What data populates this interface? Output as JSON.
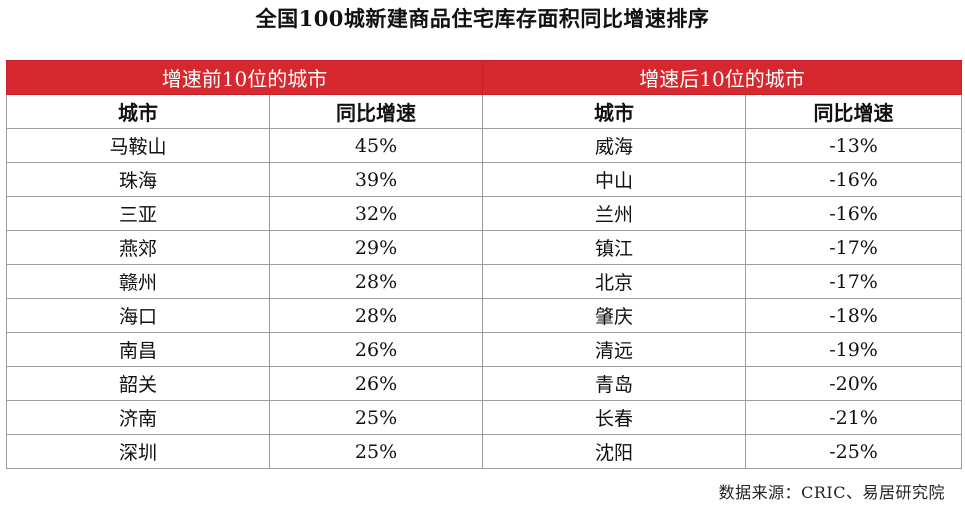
{
  "title": "全国100城新建商品住宅库存面积同比增速排序",
  "source": "数据来源：CRIC、易居研究院",
  "colors": {
    "header_fill": "#d7282f",
    "header_text": "#ffffff",
    "grid_line": "#9c9c9c"
  },
  "chart_data": {
    "type": "table",
    "title": "全国100城新建商品住宅库存面积同比增速排序",
    "groups": [
      {
        "label": "增速前10位的城市",
        "columns": [
          "城市",
          "同比增速"
        ],
        "rows": [
          [
            "马鞍山",
            "45%"
          ],
          [
            "珠海",
            "39%"
          ],
          [
            "三亚",
            "32%"
          ],
          [
            "燕郊",
            "29%"
          ],
          [
            "赣州",
            "28%"
          ],
          [
            "海口",
            "28%"
          ],
          [
            "南昌",
            "26%"
          ],
          [
            "韶关",
            "26%"
          ],
          [
            "济南",
            "25%"
          ],
          [
            "深圳",
            "25%"
          ]
        ]
      },
      {
        "label": "增速后10位的城市",
        "columns": [
          "城市",
          "同比增速"
        ],
        "rows": [
          [
            "威海",
            "-13%"
          ],
          [
            "中山",
            "-16%"
          ],
          [
            "兰州",
            "-16%"
          ],
          [
            "镇江",
            "-17%"
          ],
          [
            "北京",
            "-17%"
          ],
          [
            "肇庆",
            "-18%"
          ],
          [
            "清远",
            "-19%"
          ],
          [
            "青岛",
            "-20%"
          ],
          [
            "长春",
            "-21%"
          ],
          [
            "沈阳",
            "-25%"
          ]
        ]
      }
    ]
  }
}
